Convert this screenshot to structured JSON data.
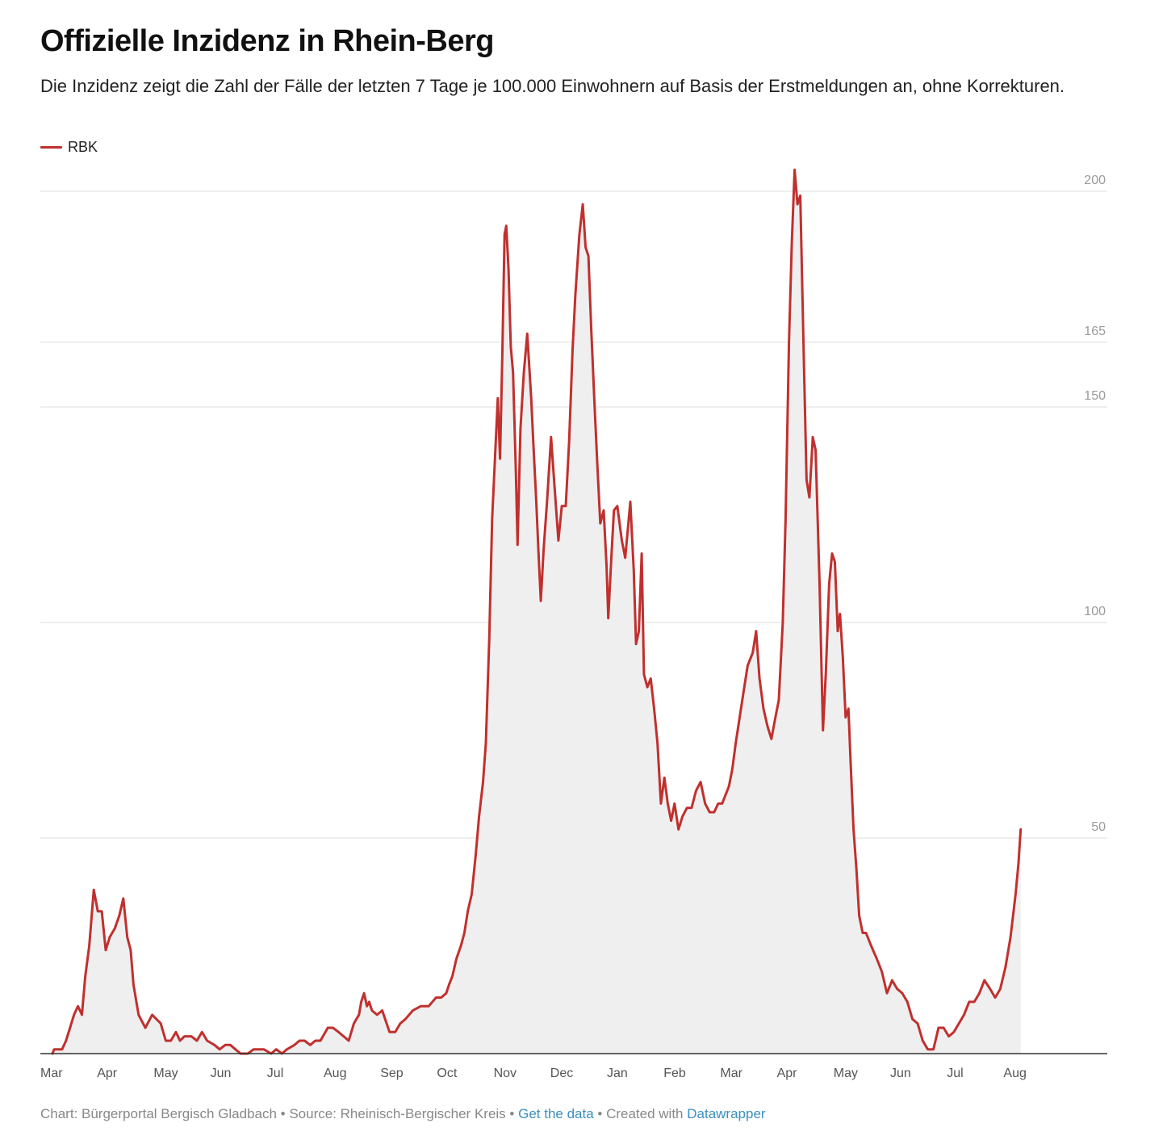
{
  "title": "Offizielle Inzidenz in Rhein-Berg",
  "subtitle": "Die Inzidenz zeigt die Zahl der Fälle der letzten 7 Tage je 100.000 Einwohnern auf Basis der Erstmeldungen an, ohne Korrekturen.",
  "legend": {
    "label": "RBK",
    "color": "#c0302e"
  },
  "footer": {
    "chart_label": "Chart: Bürgerportal Bergisch Gladbach",
    "sep1": " • ",
    "source_label": "Source: Rheinisch-Bergischer Kreis",
    "sep2": " • ",
    "get_data": "Get the data",
    "sep3": " • Created with ",
    "tool": "Datawrapper"
  },
  "colors": {
    "line": "#c0302e",
    "area": "#efefef",
    "grid": "#dddddd",
    "axis": "#333333",
    "link": "#3a8fbf"
  },
  "chart_data": {
    "type": "area",
    "title": "Offizielle Inzidenz in Rhein-Berg",
    "xlabel": "",
    "ylabel": "",
    "ylim": [
      0,
      200
    ],
    "ygrid": [
      200,
      165,
      150,
      100,
      50
    ],
    "grid": true,
    "legend_position": "top-left",
    "categories": [
      "Mar",
      "Apr",
      "May",
      "Jun",
      "Jul",
      "Aug",
      "Sep",
      "Oct",
      "Nov",
      "Dec",
      "Jan",
      "Feb",
      "Mar",
      "Apr",
      "May",
      "Jun",
      "Jul",
      "Aug"
    ],
    "series": [
      {
        "name": "RBK",
        "points": [
          [
            0.0,
            0
          ],
          [
            0.03,
            1
          ],
          [
            0.17,
            1
          ],
          [
            0.24,
            3
          ],
          [
            0.31,
            6
          ],
          [
            0.38,
            9
          ],
          [
            0.45,
            11
          ],
          [
            0.52,
            9
          ],
          [
            0.58,
            18
          ],
          [
            0.65,
            25
          ],
          [
            0.73,
            38
          ],
          [
            0.8,
            33
          ],
          [
            0.87,
            33
          ],
          [
            0.94,
            24
          ],
          [
            1.01,
            27
          ],
          [
            1.1,
            29
          ],
          [
            1.18,
            32
          ],
          [
            1.25,
            36
          ],
          [
            1.32,
            27
          ],
          [
            1.38,
            24
          ],
          [
            1.43,
            16
          ],
          [
            1.52,
            9
          ],
          [
            1.64,
            6
          ],
          [
            1.76,
            9
          ],
          [
            1.91,
            7
          ],
          [
            2.0,
            3
          ],
          [
            2.09,
            3
          ],
          [
            2.18,
            5
          ],
          [
            2.25,
            3
          ],
          [
            2.33,
            4
          ],
          [
            2.45,
            4
          ],
          [
            2.55,
            3
          ],
          [
            2.64,
            5
          ],
          [
            2.73,
            3
          ],
          [
            2.86,
            2
          ],
          [
            2.95,
            1
          ],
          [
            3.05,
            2
          ],
          [
            3.14,
            2
          ],
          [
            3.23,
            1
          ],
          [
            3.32,
            0
          ],
          [
            3.45,
            0
          ],
          [
            3.55,
            1
          ],
          [
            3.73,
            1
          ],
          [
            3.86,
            0
          ],
          [
            3.95,
            1
          ],
          [
            4.05,
            0
          ],
          [
            4.14,
            1
          ],
          [
            4.27,
            2
          ],
          [
            4.36,
            3
          ],
          [
            4.45,
            3
          ],
          [
            4.55,
            2
          ],
          [
            4.64,
            3
          ],
          [
            4.73,
            3
          ],
          [
            4.86,
            6
          ],
          [
            4.95,
            6
          ],
          [
            5.05,
            5
          ],
          [
            5.14,
            4
          ],
          [
            5.23,
            3
          ],
          [
            5.32,
            7
          ],
          [
            5.41,
            9
          ],
          [
            5.45,
            12
          ],
          [
            5.5,
            14
          ],
          [
            5.55,
            11
          ],
          [
            5.59,
            12
          ],
          [
            5.64,
            10
          ],
          [
            5.73,
            9
          ],
          [
            5.82,
            10
          ],
          [
            5.95,
            5
          ],
          [
            6.05,
            5
          ],
          [
            6.14,
            7
          ],
          [
            6.23,
            8
          ],
          [
            6.36,
            10
          ],
          [
            6.5,
            11
          ],
          [
            6.64,
            11
          ],
          [
            6.77,
            13
          ],
          [
            6.86,
            13
          ],
          [
            6.95,
            14
          ],
          [
            7.0,
            16
          ],
          [
            7.06,
            18
          ],
          [
            7.13,
            22
          ],
          [
            7.21,
            25
          ],
          [
            7.27,
            28
          ],
          [
            7.33,
            33
          ],
          [
            7.4,
            37
          ],
          [
            7.47,
            46
          ],
          [
            7.53,
            55
          ],
          [
            7.6,
            63
          ],
          [
            7.65,
            72
          ],
          [
            7.71,
            96
          ],
          [
            7.76,
            124
          ],
          [
            7.81,
            138
          ],
          [
            7.86,
            152
          ],
          [
            7.9,
            138
          ],
          [
            7.94,
            162
          ],
          [
            7.98,
            190
          ],
          [
            8.01,
            192
          ],
          [
            8.05,
            182
          ],
          [
            8.09,
            164
          ],
          [
            8.13,
            158
          ],
          [
            8.18,
            135
          ],
          [
            8.21,
            118
          ],
          [
            8.26,
            145
          ],
          [
            8.32,
            158
          ],
          [
            8.38,
            167
          ],
          [
            8.45,
            152
          ],
          [
            8.49,
            141
          ],
          [
            8.54,
            128
          ],
          [
            8.58,
            116
          ],
          [
            8.62,
            105
          ],
          [
            8.67,
            117
          ],
          [
            8.73,
            128
          ],
          [
            8.8,
            143
          ],
          [
            8.87,
            130
          ],
          [
            8.93,
            119
          ],
          [
            8.99,
            127
          ],
          [
            9.06,
            127
          ],
          [
            9.12,
            142
          ],
          [
            9.18,
            163
          ],
          [
            9.23,
            176
          ],
          [
            9.3,
            190
          ],
          [
            9.36,
            197
          ],
          [
            9.41,
            187
          ],
          [
            9.46,
            185
          ],
          [
            9.51,
            168
          ],
          [
            9.57,
            150
          ],
          [
            9.62,
            136
          ],
          [
            9.67,
            123
          ],
          [
            9.73,
            126
          ],
          [
            9.78,
            113
          ],
          [
            9.81,
            101
          ],
          [
            9.86,
            114
          ],
          [
            9.91,
            126
          ],
          [
            9.97,
            127
          ],
          [
            10.05,
            119
          ],
          [
            10.11,
            115
          ],
          [
            10.2,
            128
          ],
          [
            10.26,
            112
          ],
          [
            10.3,
            95
          ],
          [
            10.35,
            98
          ],
          [
            10.4,
            116
          ],
          [
            10.44,
            88
          ],
          [
            10.5,
            85
          ],
          [
            10.56,
            87
          ],
          [
            10.62,
            80
          ],
          [
            10.68,
            72
          ],
          [
            10.74,
            58
          ],
          [
            10.8,
            64
          ],
          [
            10.86,
            58
          ],
          [
            10.92,
            54
          ],
          [
            10.98,
            58
          ],
          [
            11.05,
            52
          ],
          [
            11.12,
            55
          ],
          [
            11.2,
            57
          ],
          [
            11.28,
            57
          ],
          [
            11.36,
            61
          ],
          [
            11.44,
            63
          ],
          [
            11.52,
            58
          ],
          [
            11.6,
            56
          ],
          [
            11.68,
            56
          ],
          [
            11.75,
            58
          ],
          [
            11.82,
            58
          ],
          [
            11.88,
            60
          ],
          [
            11.94,
            62
          ],
          [
            12.0,
            66
          ],
          [
            12.06,
            72
          ],
          [
            12.13,
            78
          ],
          [
            12.2,
            84
          ],
          [
            12.27,
            90
          ],
          [
            12.36,
            93
          ],
          [
            12.42,
            98
          ],
          [
            12.48,
            87
          ],
          [
            12.55,
            80
          ],
          [
            12.62,
            76
          ],
          [
            12.69,
            73
          ],
          [
            12.76,
            78
          ],
          [
            12.82,
            82
          ],
          [
            12.89,
            100
          ],
          [
            12.94,
            124
          ],
          [
            13.0,
            165
          ],
          [
            13.05,
            188
          ],
          [
            13.1,
            205
          ],
          [
            13.15,
            197
          ],
          [
            13.2,
            199
          ],
          [
            13.26,
            162
          ],
          [
            13.31,
            133
          ],
          [
            13.36,
            129
          ],
          [
            13.42,
            143
          ],
          [
            13.47,
            140
          ],
          [
            13.54,
            109
          ],
          [
            13.6,
            75
          ],
          [
            13.65,
            88
          ],
          [
            13.71,
            109
          ],
          [
            13.76,
            116
          ],
          [
            13.81,
            114
          ],
          [
            13.86,
            98
          ],
          [
            13.9,
            102
          ],
          [
            13.95,
            92
          ],
          [
            14.0,
            78
          ],
          [
            14.05,
            80
          ],
          [
            14.09,
            67
          ],
          [
            14.14,
            52
          ],
          [
            14.19,
            43
          ],
          [
            14.24,
            32
          ],
          [
            14.3,
            28
          ],
          [
            14.36,
            28
          ],
          [
            14.45,
            25
          ],
          [
            14.55,
            22
          ],
          [
            14.64,
            19
          ],
          [
            14.73,
            14
          ],
          [
            14.82,
            17
          ],
          [
            14.91,
            15
          ],
          [
            15.0,
            14
          ],
          [
            15.09,
            12
          ],
          [
            15.18,
            8
          ],
          [
            15.27,
            7
          ],
          [
            15.36,
            3
          ],
          [
            15.45,
            1
          ],
          [
            15.55,
            1
          ],
          [
            15.64,
            6
          ],
          [
            15.73,
            6
          ],
          [
            15.82,
            4
          ],
          [
            15.91,
            5
          ],
          [
            16.0,
            7
          ],
          [
            16.09,
            9
          ],
          [
            16.18,
            12
          ],
          [
            16.27,
            12
          ],
          [
            16.36,
            14
          ],
          [
            16.45,
            17
          ],
          [
            16.55,
            15
          ],
          [
            16.64,
            13
          ],
          [
            16.73,
            15
          ],
          [
            16.82,
            20
          ],
          [
            16.91,
            27
          ],
          [
            17.0,
            37
          ],
          [
            17.05,
            44
          ],
          [
            17.09,
            52
          ]
        ]
      }
    ]
  }
}
